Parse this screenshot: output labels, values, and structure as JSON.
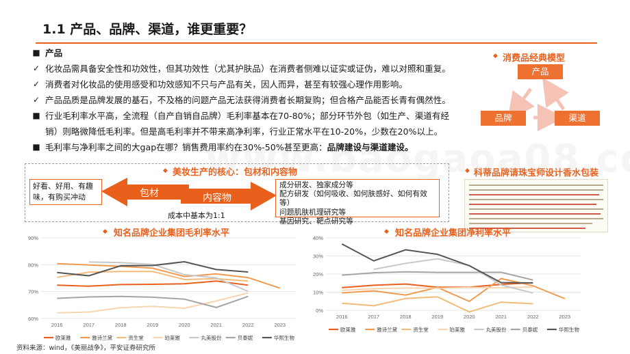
{
  "header": {
    "title": "1.1 产品、品牌、渠道，谁更重要？"
  },
  "bullets": [
    {
      "marker": "■",
      "text": "产品",
      "bold": true
    },
    {
      "marker": "✓",
      "text": "化妆品需具备安全性和功效性，但其功效性（尤其护肤品）在消费者侧难以证实或证伪，难以对照和重复。"
    },
    {
      "marker": "✓",
      "text": "消费者对化妆品的使用感受和功效感知不只与产品有关，因人而异，甚至有较强心理作用影响。"
    },
    {
      "marker": "✓",
      "text": "产品品质是品牌发展的基石，不及格的问题产品无法获得消费者长期复购；但合格产品能否长青有偶然性。"
    },
    {
      "marker": "■",
      "text": "行业毛利率水平高，全流程（自产自销自品牌）毛利率基本在70-80%；部分环节外包（如生产、渠道有经销）则略微降低毛利率。但是高毛利率并不带来高净利率，行业正常水平在10-20%，少数在20%以上。"
    },
    {
      "marker": "■",
      "text": "毛利率与净利率之间的大gap在哪？销售费用率约在30%-50%甚至更高：",
      "bold_tail": "品牌建设与渠道建设。"
    }
  ],
  "model": {
    "title": "消费品经典模型",
    "product": "产品",
    "brand": "品牌",
    "channel": "渠道"
  },
  "core": {
    "title": "美妆生产的核心：包材和内容物",
    "left_text": "好看、好用、有趣味，有购买冲动",
    "packaging": "包材",
    "content": "内容物",
    "right_lines": [
      "成分研发、独家成分等",
      "配方研发（如何吸收、如何肤感好、如何有效等）",
      "问题肌肤机理研究等",
      "基因研究、靶点研究等"
    ],
    "cost_note": "成本中基本为1:1"
  },
  "pack_example": {
    "title": "科蒂品牌请珠宝师设计香水包装"
  },
  "source": "资料来源：wind，《美丽战争》，平安证券研究所",
  "watermark": "www.baogaoa08.com",
  "chart_data": [
    {
      "type": "line",
      "title": "知名品牌企业集团毛利率水平",
      "x": [
        "2016",
        "2017",
        "2018",
        "2019",
        "2020",
        "2021",
        "2022",
        "2023"
      ],
      "ylim": [
        60,
        90
      ],
      "yticks": [
        "60%",
        "70%",
        "80%",
        "90%"
      ],
      "grid": true,
      "legend_position": "bottom",
      "series": [
        {
          "name": "欧莱雅",
          "color": "#e8601c",
          "values": [
            72.4,
            72.0,
            72.6,
            72.7,
            72.9,
            73.9,
            72.4,
            null
          ]
        },
        {
          "name": "雅诗兰黛",
          "color": "#f19a4f",
          "values": [
            80.4,
            79.9,
            79.4,
            78.7,
            75.6,
            76.6,
            75.2,
            71.3
          ]
        },
        {
          "name": "资生堂",
          "color": "#f3bb7a",
          "values": [
            75.3,
            77.2,
            77.5,
            77.5,
            74.5,
            74.8,
            73.9,
            null
          ]
        },
        {
          "name": "珀莱雅",
          "color": "#f8d5b0",
          "values": [
            62.1,
            62.4,
            64.0,
            64.5,
            63.8,
            66.5,
            69.5,
            null
          ]
        },
        {
          "name": "丸美股份",
          "color": "#c8c8c8",
          "values": [
            null,
            81.0,
            80.8,
            80.1,
            76.3,
            75.1,
            70.1,
            null
          ]
        },
        {
          "name": "贝泰妮",
          "color": "#a4a4a4",
          "values": [
            67.5,
            68.0,
            68.2,
            67.9,
            67.2,
            64.1,
            68.2,
            null
          ]
        },
        {
          "name": "华熙生物",
          "color": "#555555",
          "values": [
            77.1,
            75.9,
            79.6,
            79.7,
            81.1,
            78.2,
            77.3,
            null
          ]
        }
      ]
    },
    {
      "type": "line",
      "title": "知名品牌企业集团净利率水平",
      "x": [
        "2016",
        "2017",
        "2018",
        "2019",
        "2020",
        "2021",
        "2022",
        "2023"
      ],
      "ylim": [
        0,
        40
      ],
      "yticks": [
        "0%",
        "10%",
        "20%",
        "30%",
        "40%"
      ],
      "grid": true,
      "legend_position": "bottom",
      "series": [
        {
          "name": "欧莱雅",
          "color": "#e8601c",
          "values": [
            12.5,
            13.8,
            14.5,
            12.7,
            12.7,
            14.3,
            15.2,
            null
          ]
        },
        {
          "name": "雅诗兰黛",
          "color": "#f19a4f",
          "values": [
            9.6,
            10.7,
            8.4,
            12.6,
            4.9,
            17.5,
            13.5,
            6.4
          ]
        },
        {
          "name": "资生堂",
          "color": "#f3bb7a",
          "values": [
            3.9,
            2.5,
            6.5,
            7.4,
            -0.9,
            4.5,
            3.6,
            null
          ]
        },
        {
          "name": "珀莱雅",
          "color": "#f8d5b0",
          "values": [
            11.0,
            11.9,
            12.3,
            12.2,
            12.6,
            12.4,
            12.9,
            null
          ]
        },
        {
          "name": "丸美股份",
          "color": "#c8c8c8",
          "values": [
            null,
            22.6,
            25.9,
            28.4,
            24.8,
            14.0,
            9.5,
            null
          ]
        },
        {
          "name": "贝泰妮",
          "color": "#a4a4a4",
          "values": [
            19.4,
            20.7,
            21.2,
            20.9,
            20.9,
            21.0,
            16.7,
            null
          ]
        },
        {
          "name": "华熙生物",
          "color": "#555555",
          "values": [
            36.6,
            27.3,
            33.4,
            30.9,
            24.6,
            15.3,
            15.1,
            null
          ]
        }
      ]
    }
  ]
}
